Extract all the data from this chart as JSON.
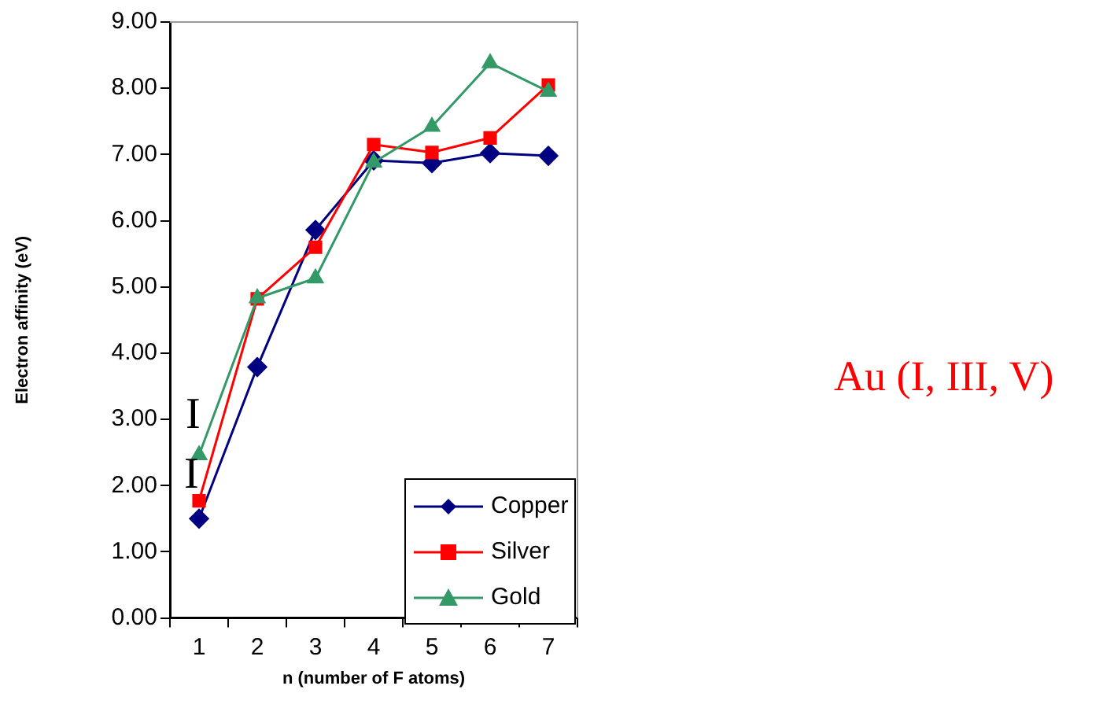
{
  "chart_data": {
    "type": "line",
    "xlabel": "n (number of F atoms)",
    "ylabel": "Electron affinity (eV)",
    "categories": [
      "1",
      "2",
      "3",
      "4",
      "5",
      "6",
      "7"
    ],
    "series": [
      {
        "name": "Copper",
        "color": "#000080",
        "marker": "diamond",
        "values": [
          1.5,
          3.79,
          5.86,
          6.91,
          6.87,
          7.02,
          6.98
        ]
      },
      {
        "name": "Silver",
        "color": "#ff0000",
        "marker": "square",
        "values": [
          1.77,
          4.82,
          5.6,
          7.15,
          7.03,
          7.25,
          8.05
        ]
      },
      {
        "name": "Gold",
        "color": "#339966",
        "marker": "triangle",
        "values": [
          2.46,
          4.83,
          5.13,
          6.88,
          7.42,
          8.38,
          7.95
        ]
      }
    ],
    "ylim": [
      0,
      9
    ],
    "yticks": [
      {
        "value": 0,
        "label": "0.00"
      },
      {
        "value": 1,
        "label": "1.00"
      },
      {
        "value": 2,
        "label": "2.00"
      },
      {
        "value": 3,
        "label": "3.00"
      },
      {
        "value": 4,
        "label": "4.00"
      },
      {
        "value": 5,
        "label": "5.00"
      },
      {
        "value": 6,
        "label": "6.00"
      },
      {
        "value": 7,
        "label": "7.00"
      },
      {
        "value": 8,
        "label": "8.00"
      },
      {
        "value": 9,
        "label": "9.00"
      }
    ],
    "grid": false,
    "legend": "bottom right",
    "line_style": "solid",
    "annotations": [
      "I",
      "I",
      "Au (I, III, V)"
    ]
  }
}
